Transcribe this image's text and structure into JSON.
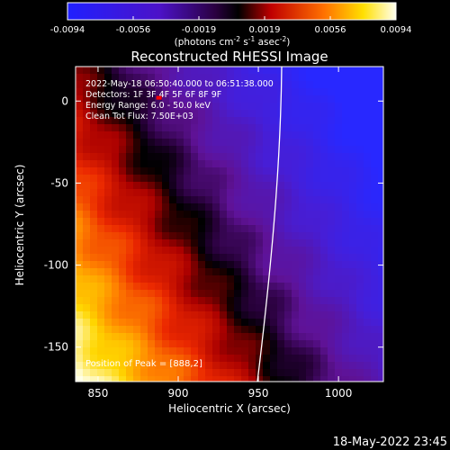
{
  "colorbar": {
    "tick_labels": [
      "-0.0094",
      "-0.0056",
      "-0.0019",
      "0.0019",
      "0.0056",
      "0.0094"
    ],
    "units_base": "(photons cm",
    "units_exp1": "-2",
    "units_mid": " s",
    "units_exp2": "-1",
    "units_mid2": " asec",
    "units_exp3": "-2",
    "units_close": ")"
  },
  "chart_data": {
    "type": "heatmap",
    "title": "Reconstructed RHESSI Image",
    "xlabel": "Heliocentric X (arcsec)",
    "ylabel": "Heliocentric Y (arcsec)",
    "xlim": [
      836,
      1028
    ],
    "ylim": [
      -171,
      21
    ],
    "xticks": [
      "850",
      "900",
      "950",
      "1000"
    ],
    "yticks": [
      "0",
      "-50",
      "-100",
      "-150"
    ],
    "zlim": [
      -0.0094,
      0.0094
    ],
    "annotations": [
      "2022-May-18 06:50:40.000 to 06:51:38.000",
      "Detectors: 1F 3F 4F 5F 6F 8F 9F",
      "Energy Range: 6.0 - 50.0 keV",
      "Clean   Tot Flux: 7.50E+03"
    ],
    "peak_label": "Position of Peak = [888,2]",
    "peak": [
      888,
      2
    ]
  },
  "footer": {
    "timestamp": "18-May-2022 23:45"
  }
}
